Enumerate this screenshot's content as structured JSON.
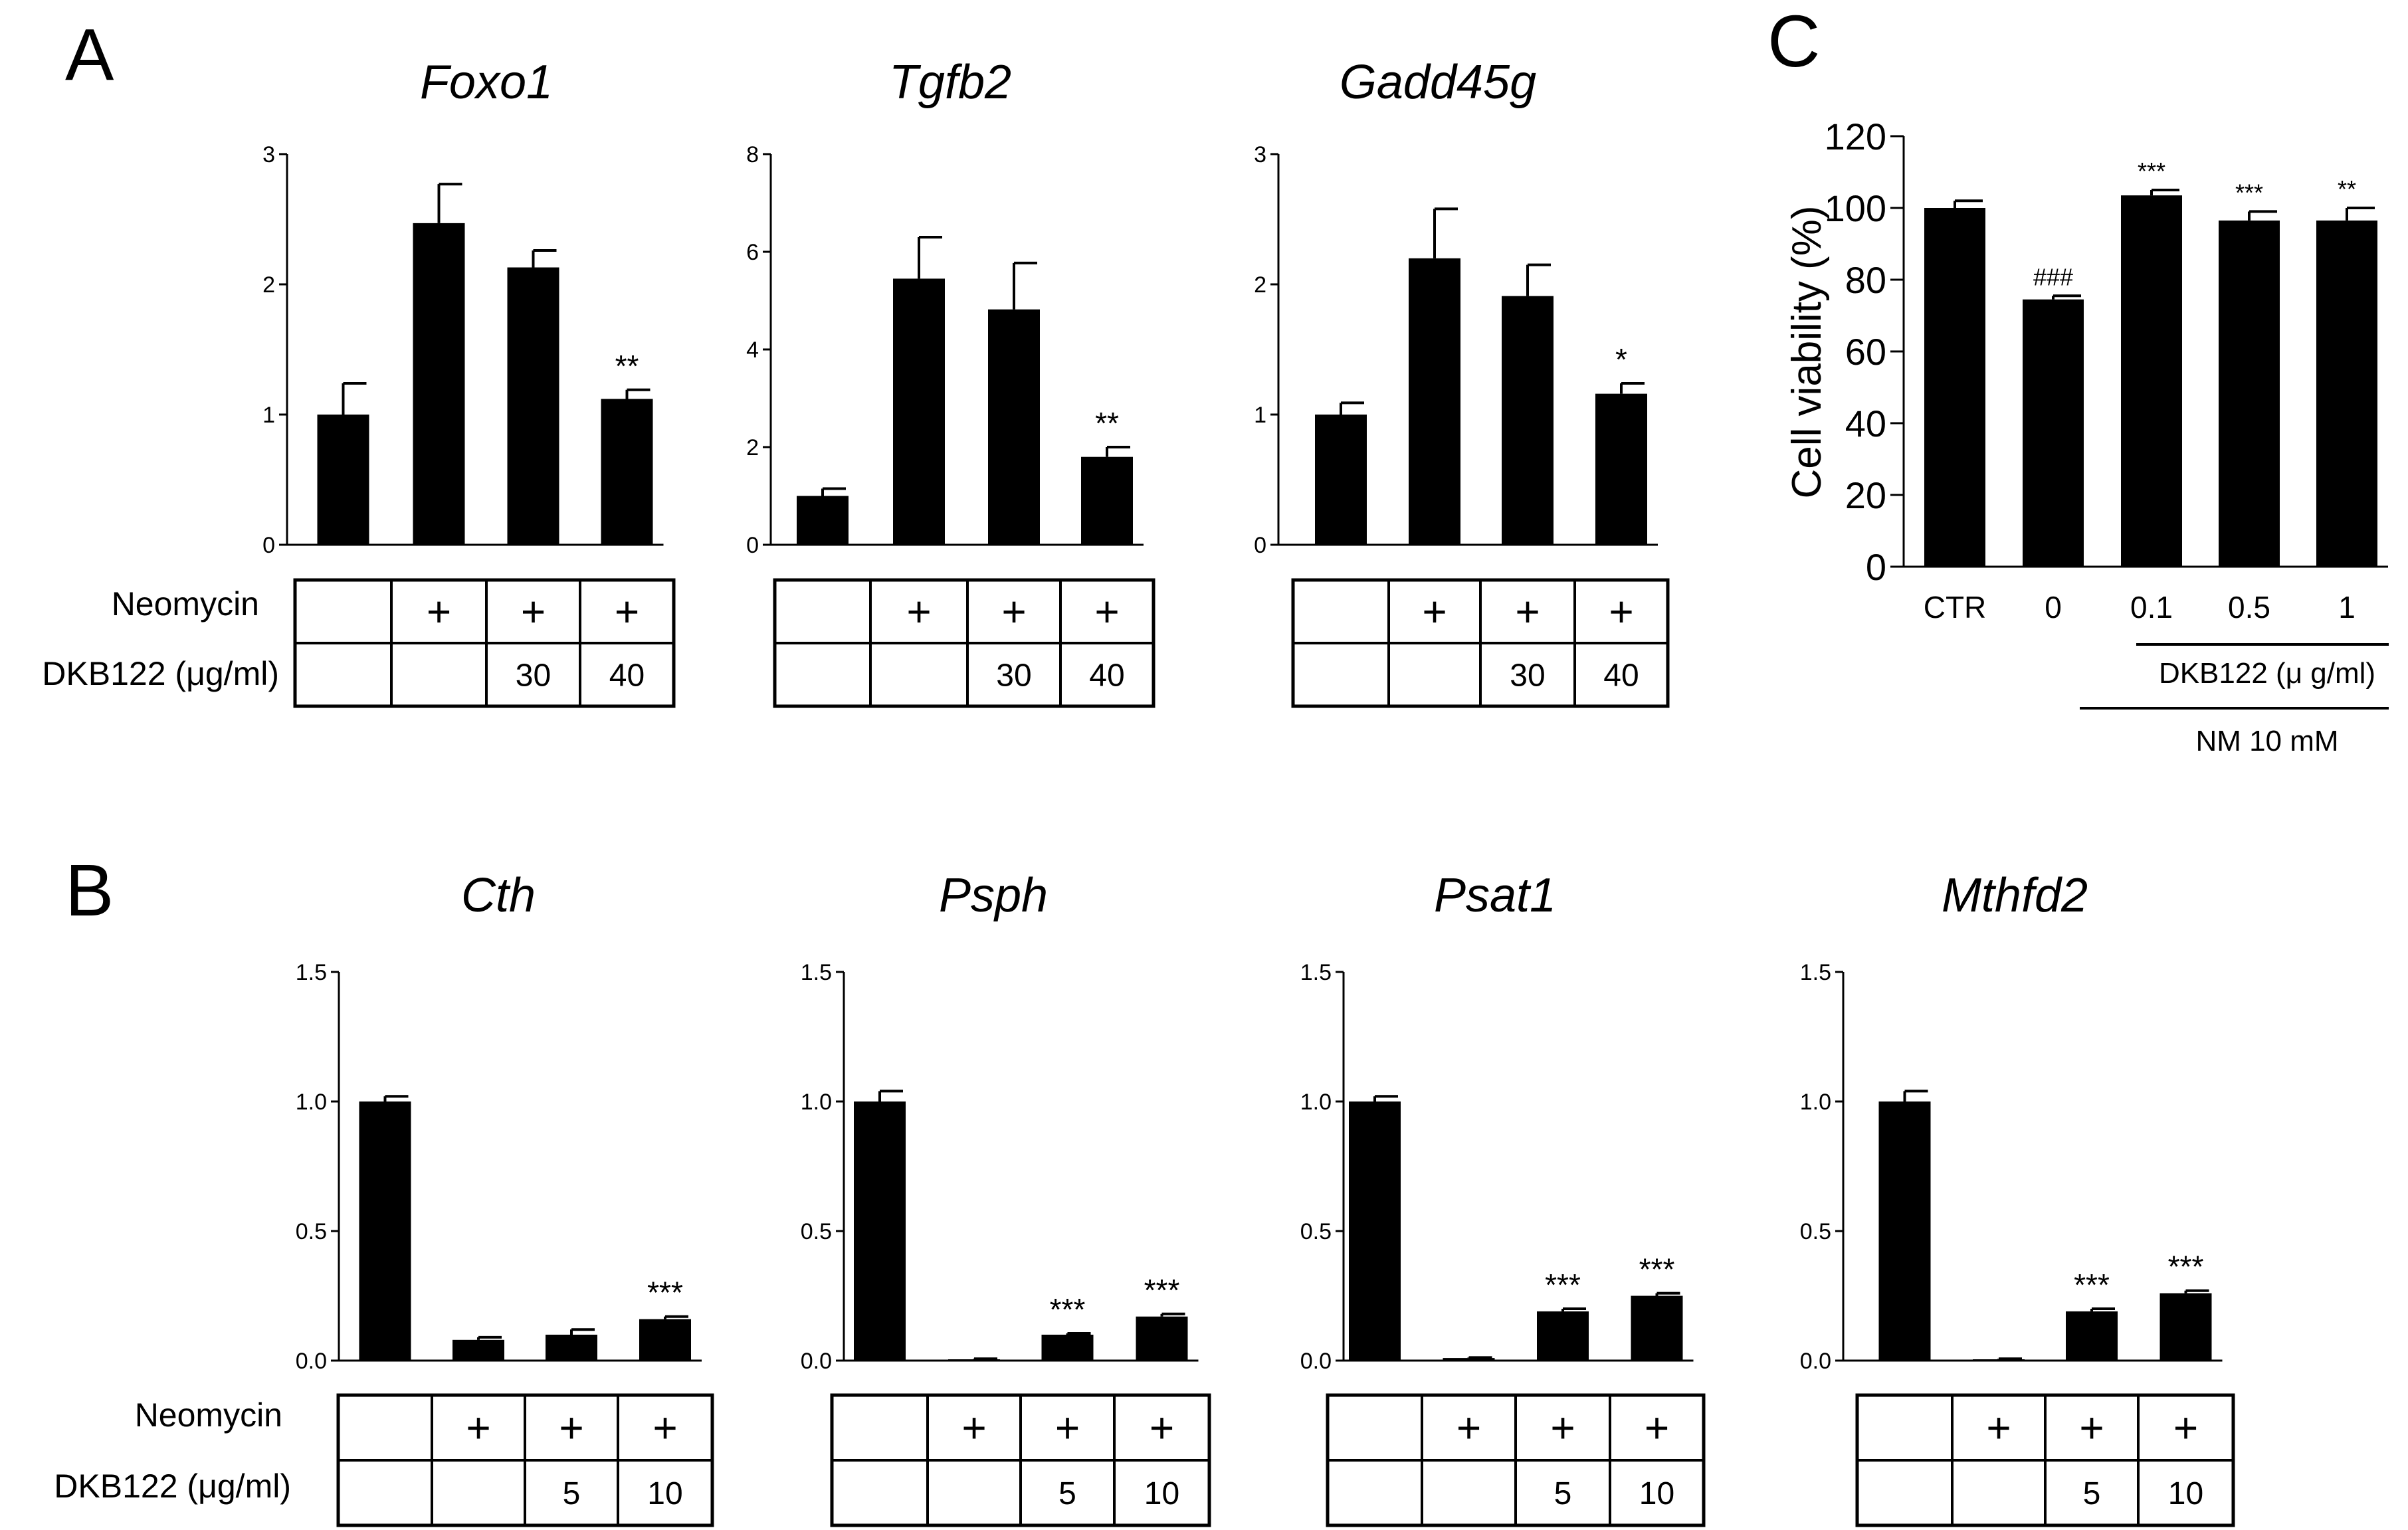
{
  "panels": {
    "A": {
      "label": "A",
      "row_labels": [
        "Neomycin",
        "DKB122 (μg/ml)"
      ],
      "neomycin_cells": [
        "",
        "+",
        "+",
        "+"
      ],
      "dkb_cells": [
        "",
        "",
        "30",
        "40"
      ]
    },
    "B": {
      "label": "B",
      "row_labels": [
        "Neomycin",
        "DKB122 (μg/ml)"
      ],
      "neomycin_cells": [
        "",
        "+",
        "+",
        "+"
      ],
      "dkb_cells": [
        "",
        "",
        "5",
        "10"
      ]
    },
    "C": {
      "label": "C",
      "sub_label_1": "DKB122 (μ g/ml)",
      "sub_label_2": "NM 10 mM"
    }
  },
  "chart_data": [
    {
      "id": "foxo1",
      "panel": "A",
      "type": "bar",
      "title": "Foxo1",
      "ylim": [
        0,
        3
      ],
      "ticks": [
        "0",
        "1",
        "2",
        "3"
      ],
      "tick_values": [
        0,
        1,
        2,
        3
      ],
      "values": [
        1.0,
        2.47,
        2.13,
        1.12
      ],
      "errors": [
        0.24,
        0.3,
        0.13,
        0.07
      ],
      "significance": [
        "",
        "",
        "",
        "**"
      ]
    },
    {
      "id": "tgfb2",
      "panel": "A",
      "type": "bar",
      "title": "Tgfb2",
      "ylim": [
        0,
        8
      ],
      "ticks": [
        "0",
        "2",
        "4",
        "6",
        "8"
      ],
      "tick_values": [
        0,
        2,
        4,
        6,
        8
      ],
      "values": [
        1.0,
        5.45,
        4.82,
        1.8
      ],
      "errors": [
        0.15,
        0.85,
        0.95,
        0.2
      ],
      "significance": [
        "",
        "",
        "",
        "**"
      ]
    },
    {
      "id": "gadd45g",
      "panel": "A",
      "type": "bar",
      "title": "Gadd45g",
      "ylim": [
        0,
        3
      ],
      "ticks": [
        "0",
        "1",
        "2",
        "3"
      ],
      "tick_values": [
        0,
        1,
        2,
        3
      ],
      "values": [
        1.0,
        2.2,
        1.91,
        1.16
      ],
      "errors": [
        0.09,
        0.38,
        0.24,
        0.08
      ],
      "significance": [
        "",
        "",
        "",
        "*"
      ]
    },
    {
      "id": "cth",
      "panel": "B",
      "type": "bar",
      "title": "Cth",
      "ylim": [
        0,
        1.5
      ],
      "ticks": [
        "0.0",
        "0.5",
        "1.0",
        "1.5"
      ],
      "tick_values": [
        0,
        0.5,
        1.0,
        1.5
      ],
      "values": [
        1.0,
        0.08,
        0.1,
        0.16
      ],
      "errors": [
        0.02,
        0.01,
        0.02,
        0.01
      ],
      "significance": [
        "",
        "",
        "",
        "***"
      ]
    },
    {
      "id": "psph",
      "panel": "B",
      "type": "bar",
      "title": "Psph",
      "ylim": [
        0,
        1.5
      ],
      "ticks": [
        "0.0",
        "0.5",
        "1.0",
        "1.5"
      ],
      "tick_values": [
        0,
        0.5,
        1.0,
        1.5
      ],
      "values": [
        1.0,
        0.005,
        0.1,
        0.17
      ],
      "errors": [
        0.04,
        0.002,
        0.005,
        0.01
      ],
      "significance": [
        "",
        "",
        "***",
        "***"
      ]
    },
    {
      "id": "psat1",
      "panel": "B",
      "type": "bar",
      "title": "Psat1",
      "ylim": [
        0,
        1.5
      ],
      "ticks": [
        "0.0",
        "0.5",
        "1.0",
        "1.5"
      ],
      "tick_values": [
        0,
        0.5,
        1.0,
        1.5
      ],
      "values": [
        1.0,
        0.01,
        0.19,
        0.25
      ],
      "errors": [
        0.02,
        0.002,
        0.01,
        0.01
      ],
      "significance": [
        "",
        "",
        "***",
        "***"
      ]
    },
    {
      "id": "mthfd2",
      "panel": "B",
      "type": "bar",
      "title": "Mthfd2",
      "ylim": [
        0,
        1.5
      ],
      "ticks": [
        "0.0",
        "0.5",
        "1.0",
        "1.5"
      ],
      "tick_values": [
        0,
        0.5,
        1.0,
        1.5
      ],
      "values": [
        1.0,
        0.005,
        0.19,
        0.26
      ],
      "errors": [
        0.04,
        0.002,
        0.01,
        0.01
      ],
      "significance": [
        "",
        "",
        "***",
        "***"
      ]
    },
    {
      "id": "viability",
      "panel": "C",
      "type": "bar",
      "title": "",
      "ylabel": "Cell viability (%)",
      "ylim": [
        0,
        120
      ],
      "ticks": [
        "0",
        "20",
        "40",
        "60",
        "80",
        "100",
        "120"
      ],
      "tick_values": [
        0,
        20,
        40,
        60,
        80,
        100,
        120
      ],
      "categories": [
        "CTR",
        "0",
        "0.1",
        "0.5",
        "1"
      ],
      "values": [
        100,
        74.5,
        103.5,
        96.5,
        96.5
      ],
      "errors": [
        2,
        1,
        1.5,
        2.5,
        3.5
      ],
      "significance": [
        "",
        "###",
        "***",
        "***",
        "**"
      ]
    }
  ]
}
